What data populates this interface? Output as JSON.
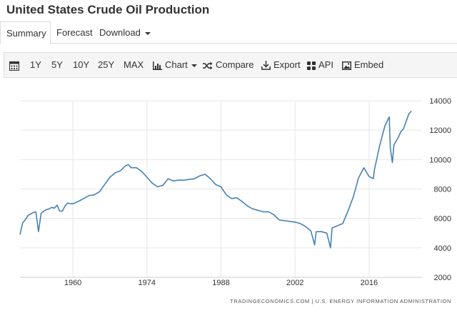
{
  "page": {
    "title": "United States Crude Oil Production"
  },
  "tabs": [
    {
      "label": "Summary",
      "active": true
    },
    {
      "label": "Forecast",
      "active": false
    },
    {
      "label": "Download",
      "active": false,
      "dropdown": true
    }
  ],
  "toolbar": {
    "calendar_icon": "calendar-icon",
    "ranges": [
      "1Y",
      "5Y",
      "10Y",
      "25Y",
      "MAX"
    ],
    "chart_label": "Chart",
    "compare_label": "Compare",
    "export_label": "Export",
    "api_label": "API",
    "embed_label": "Embed"
  },
  "colors": {
    "line": "#4682b4",
    "grid": "#e6e6e6",
    "axis_text": "#333333",
    "toolbar_bg": "#f5f5f5",
    "border": "#dddddd"
  },
  "chart_data": {
    "type": "line",
    "title": "",
    "xlabel": "",
    "ylabel": "",
    "xlim": [
      1950,
      2026
    ],
    "ylim": [
      2000,
      14000
    ],
    "x_ticks": [
      "1960",
      "1974",
      "1988",
      "2002",
      "2016"
    ],
    "y_ticks": [
      "14000",
      "12000",
      "10000",
      "8000",
      "6000",
      "4000",
      "2000"
    ],
    "y_axis_side": "right",
    "grid": true,
    "source": "TRADINGECONOMICS.COM | U.S. ENERGY INFORMATION ADMINISTRATION",
    "series": [
      {
        "x": [
          1950.0,
          1950.5,
          1951.0,
          1951.5,
          1952.0,
          1952.5,
          1953.0,
          1953.5,
          1954.0,
          1954.5,
          1955.0,
          1955.5,
          1956.0,
          1956.5,
          1957.0,
          1957.5,
          1958.0,
          1958.5,
          1959.0,
          1959.5,
          1960.0,
          1961.0,
          1962.0,
          1963.0,
          1964.0,
          1965.0,
          1966.0,
          1967.0,
          1968.0,
          1969.0,
          1970.0,
          1970.5,
          1971.0,
          1972.0,
          1973.0,
          1974.0,
          1975.0,
          1976.0,
          1977.0,
          1978.0,
          1979.0,
          1980.0,
          1981.0,
          1982.0,
          1983.0,
          1984.0,
          1985.0,
          1986.0,
          1987.0,
          1988.0,
          1989.0,
          1990.0,
          1991.0,
          1992.0,
          1993.0,
          1994.0,
          1995.0,
          1996.0,
          1997.0,
          1998.0,
          1999.0,
          2000.0,
          2001.0,
          2002.0,
          2003.0,
          2004.0,
          2005.0,
          2005.7,
          2006.0,
          2007.0,
          2008.0,
          2008.7,
          2009.0,
          2010.0,
          2011.0,
          2012.0,
          2013.0,
          2014.0,
          2015.0,
          2016.0,
          2016.8,
          2017.0,
          2018.0,
          2019.0,
          2019.8,
          2020.0,
          2020.4,
          2020.7,
          2021.0,
          2021.5,
          2022.0,
          2022.5,
          2023.0,
          2023.5,
          2024.0
        ],
        "y": [
          4900,
          5700,
          5900,
          6200,
          6300,
          6400,
          6450,
          5100,
          6350,
          6500,
          6600,
          6650,
          6750,
          6700,
          6900,
          6500,
          6500,
          6850,
          7050,
          7000,
          7000,
          7150,
          7350,
          7550,
          7600,
          7800,
          8300,
          8800,
          9100,
          9250,
          9600,
          9650,
          9450,
          9450,
          9200,
          8800,
          8400,
          8150,
          8250,
          8700,
          8550,
          8600,
          8600,
          8650,
          8700,
          8900,
          9000,
          8700,
          8300,
          8150,
          7600,
          7350,
          7400,
          7150,
          6850,
          6650,
          6550,
          6450,
          6450,
          6250,
          5900,
          5850,
          5800,
          5750,
          5650,
          5450,
          5150,
          4200,
          5100,
          5100,
          5000,
          4000,
          5350,
          5500,
          5650,
          6500,
          7450,
          8750,
          9450,
          8850,
          8700,
          9300,
          10950,
          12300,
          12900,
          10800,
          9800,
          11000,
          11200,
          11500,
          11900,
          12100,
          12600,
          13100,
          13300
        ]
      }
    ]
  }
}
